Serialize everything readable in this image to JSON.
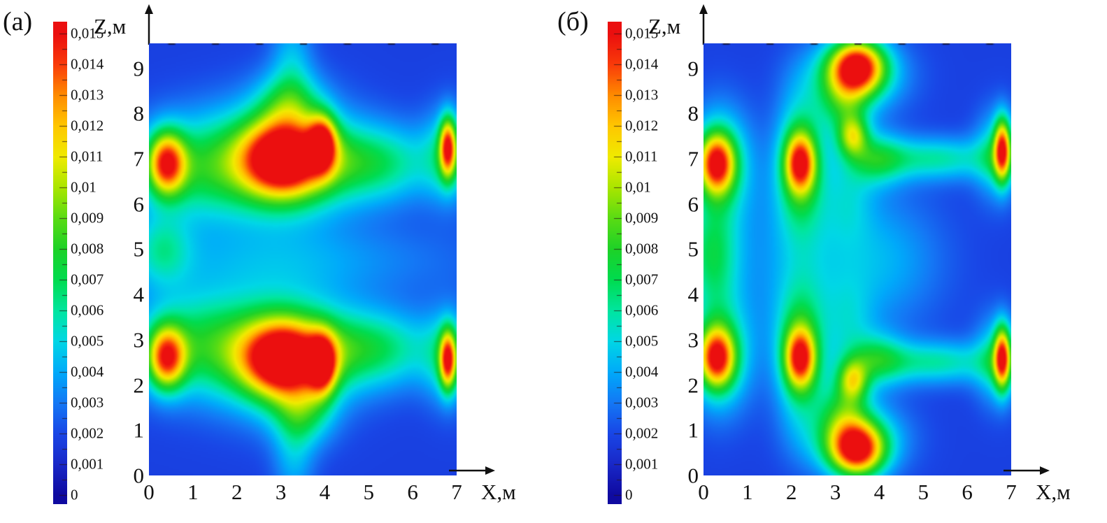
{
  "chart_data": {
    "type": "heatmap",
    "description": "Two filled-contour concentration maps, panels (а) and (б), of a scalar field (0 to 0.015) over the X-Z plane with a jet-style colorbar on the left of each panel.",
    "colorbar": {
      "min": 0,
      "max": 0.015,
      "colormap": "jet",
      "tick_labels": [
        "0",
        "0,001",
        "0,002",
        "0,003",
        "0,004",
        "0,005",
        "0,006",
        "0,007",
        "0,008",
        "0,009",
        "0,01",
        "0,011",
        "0,012",
        "0,013",
        "0,014",
        "0,015"
      ],
      "stops": [
        "#0f0aa0",
        "#1928c8",
        "#1946e6",
        "#1478f5",
        "#00aafa",
        "#00d7e6",
        "#00e6a0",
        "#00dc50",
        "#1ed228",
        "#5adc14",
        "#aae600",
        "#f0eb00",
        "#ffc800",
        "#ff8c00",
        "#fa3c0a",
        "#eb0f0f"
      ]
    },
    "panels": [
      {
        "label": "(а)",
        "x_label": "X,м",
        "z_label": "Z,м",
        "x_ticks": [
          "0",
          "1",
          "2",
          "3",
          "4",
          "5",
          "6",
          "7"
        ],
        "z_ticks": [
          "0",
          "1",
          "2",
          "3",
          "4",
          "5",
          "6",
          "7",
          "8",
          "9"
        ],
        "x_range": [
          0,
          7
        ],
        "z_range": [
          0,
          9.55
        ],
        "base": 0.0018,
        "blobs": [
          [
            1.1,
            6.8,
            0.005,
            1.05,
            0.8
          ],
          [
            3.1,
            7.0,
            0.0058,
            1.05,
            0.9
          ],
          [
            5.1,
            6.9,
            0.0048,
            1.0,
            0.6
          ],
          [
            6.85,
            7.1,
            0.004,
            0.4,
            0.7
          ],
          [
            0.4,
            6.9,
            0.01,
            0.3,
            0.48
          ],
          [
            3.05,
            7.0,
            0.011,
            0.65,
            0.58
          ],
          [
            3.95,
            7.35,
            0.0085,
            0.22,
            0.42
          ],
          [
            6.8,
            7.25,
            0.0095,
            0.13,
            0.45
          ],
          [
            3.2,
            8.25,
            0.0038,
            0.5,
            0.5
          ],
          [
            3.25,
            9.3,
            0.0022,
            0.33,
            0.7
          ],
          [
            3.1,
            4.75,
            0.002,
            2.8,
            0.6
          ],
          [
            0.3,
            5.0,
            0.003,
            0.45,
            0.55
          ],
          [
            1.1,
            2.9,
            0.005,
            1.05,
            0.8
          ],
          [
            3.1,
            2.7,
            0.0058,
            1.05,
            0.9
          ],
          [
            5.1,
            2.8,
            0.0048,
            1.0,
            0.6
          ],
          [
            6.85,
            2.6,
            0.004,
            0.4,
            0.7
          ],
          [
            0.4,
            2.6,
            0.01,
            0.3,
            0.48
          ],
          [
            3.05,
            2.55,
            0.011,
            0.65,
            0.58
          ],
          [
            3.95,
            2.45,
            0.0085,
            0.22,
            0.45
          ],
          [
            6.8,
            2.55,
            0.0095,
            0.13,
            0.45
          ],
          [
            3.5,
            1.35,
            0.0038,
            0.48,
            0.5
          ],
          [
            3.3,
            0.35,
            0.0022,
            0.33,
            0.7
          ]
        ]
      },
      {
        "label": "(б)",
        "x_label": "X,м",
        "z_label": "Z,м",
        "x_ticks": [
          "0",
          "1",
          "2",
          "3",
          "4",
          "5",
          "6",
          "7"
        ],
        "z_ticks": [
          "0",
          "1",
          "2",
          "3",
          "4",
          "5",
          "6",
          "7",
          "8",
          "9"
        ],
        "x_range": [
          0,
          7
        ],
        "z_range": [
          0,
          9.55
        ],
        "base": 0.0018,
        "blobs": [
          [
            3.5,
            9.05,
            0.0105,
            0.42,
            0.4
          ],
          [
            3.45,
            8.85,
            0.0048,
            0.75,
            0.55
          ],
          [
            3.2,
            8.2,
            0.004,
            0.4,
            0.55
          ],
          [
            3.4,
            7.5,
            0.006,
            0.24,
            0.32
          ],
          [
            3.95,
            7.0,
            0.004,
            0.45,
            0.4
          ],
          [
            5.3,
            7.0,
            0.004,
            0.95,
            0.33
          ],
          [
            6.7,
            7.1,
            0.0042,
            0.35,
            0.65
          ],
          [
            6.8,
            7.2,
            0.0095,
            0.13,
            0.48
          ],
          [
            2.2,
            6.9,
            0.0055,
            0.38,
            1.05
          ],
          [
            2.2,
            6.9,
            0.0085,
            0.24,
            0.45
          ],
          [
            0.3,
            6.9,
            0.0095,
            0.28,
            0.45
          ],
          [
            0.38,
            6.9,
            0.0045,
            0.5,
            0.85
          ],
          [
            0.1,
            4.85,
            0.0032,
            0.5,
            0.75
          ],
          [
            0.3,
            4.8,
            0.0015,
            0.35,
            1.6
          ],
          [
            2.6,
            4.75,
            0.0022,
            1.4,
            1.5
          ],
          [
            4.3,
            4.75,
            0.0013,
            0.9,
            0.9
          ],
          [
            3.3,
            6.2,
            0.0018,
            0.4,
            0.7
          ],
          [
            3.3,
            3.3,
            0.0018,
            0.4,
            0.7
          ],
          [
            3.5,
            0.55,
            0.0105,
            0.42,
            0.4
          ],
          [
            3.45,
            0.8,
            0.0048,
            0.75,
            0.55
          ],
          [
            3.2,
            1.4,
            0.004,
            0.4,
            0.55
          ],
          [
            3.4,
            2.1,
            0.006,
            0.24,
            0.32
          ],
          [
            3.95,
            2.55,
            0.004,
            0.45,
            0.4
          ],
          [
            5.3,
            2.5,
            0.004,
            0.95,
            0.33
          ],
          [
            6.7,
            2.55,
            0.0042,
            0.35,
            0.65
          ],
          [
            6.8,
            2.6,
            0.0095,
            0.13,
            0.48
          ],
          [
            2.2,
            2.65,
            0.0055,
            0.38,
            1.05
          ],
          [
            2.2,
            2.6,
            0.0085,
            0.24,
            0.45
          ],
          [
            0.3,
            2.6,
            0.0095,
            0.28,
            0.45
          ],
          [
            0.38,
            2.65,
            0.0045,
            0.5,
            0.85
          ]
        ]
      }
    ]
  }
}
